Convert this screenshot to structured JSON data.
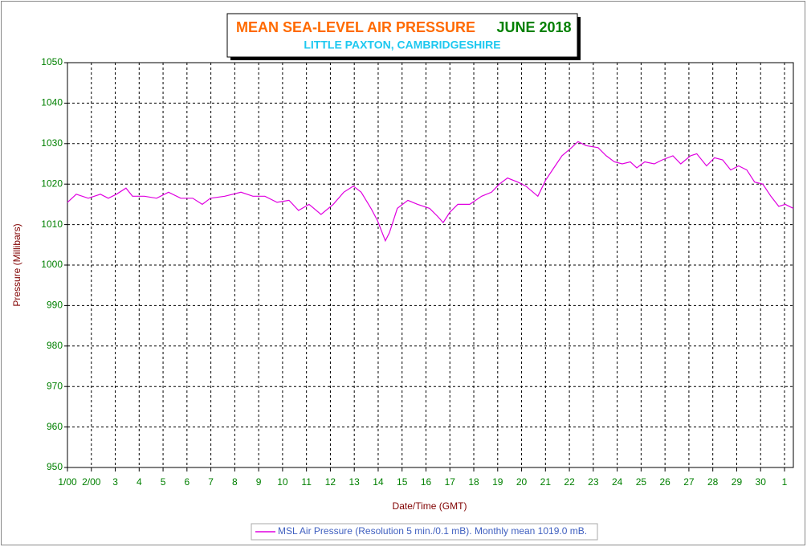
{
  "chart_data": {
    "type": "line",
    "title": "MEAN SEA-LEVEL AIR PRESSURE",
    "period": "JUNE 2018",
    "subtitle": "LITTLE PAXTON, CAMBRIDGESHIRE",
    "x_label": "Date/Time (GMT)",
    "y_label": "Pressure (Millibars)",
    "x": [
      0,
      0.37,
      0.87,
      1.38,
      1.71,
      2.05,
      2.45,
      2.72,
      3.22,
      3.73,
      4.23,
      4.74,
      5.24,
      5.64,
      5.98,
      6.58,
      7.26,
      7.76,
      8.26,
      8.77,
      9.27,
      9.67,
      10.11,
      10.61,
      11.12,
      11.56,
      11.96,
      12.29,
      12.7,
      12.97,
      13.3,
      13.47,
      13.8,
      14.24,
      14.65,
      15.15,
      15.49,
      15.72,
      15.99,
      16.33,
      16.83,
      17.33,
      17.74,
      18.07,
      18.41,
      18.84,
      19.18,
      19.68,
      20.01,
      20.35,
      20.69,
      21.09,
      21.36,
      21.7,
      22.2,
      22.54,
      22.88,
      23.21,
      23.55,
      23.82,
      24.15,
      24.55,
      24.89,
      25.33,
      25.66,
      26.07,
      26.33,
      26.74,
      27.07,
      27.41,
      27.75,
      28.08,
      28.42,
      28.75,
      29.09,
      29.43,
      29.76,
      30.03,
      30.37
    ],
    "series": [
      {
        "name": "MSL Air Pressure (Resolution 5 min./0.1 mB). Monthly mean 1019.0 mB.",
        "color": "#e000e0",
        "values": [
          1015.5,
          1017.5,
          1016.5,
          1017.5,
          1016.5,
          1017.5,
          1019,
          1017,
          1017,
          1016.5,
          1018,
          1016.5,
          1016.5,
          1015,
          1016.5,
          1017,
          1018,
          1017,
          1017,
          1015.5,
          1016,
          1013.5,
          1015,
          1012.5,
          1015,
          1018,
          1019.5,
          1018,
          1014,
          1011,
          1006,
          1008,
          1014,
          1016,
          1015,
          1014,
          1012,
          1010.5,
          1013,
          1015,
          1015,
          1017,
          1018,
          1020,
          1021.5,
          1020.5,
          1019.5,
          1017,
          1021,
          1024,
          1027,
          1029,
          1030.5,
          1029.5,
          1029,
          1027,
          1025.5,
          1025,
          1025.5,
          1024,
          1025.5,
          1025,
          1026,
          1027,
          1025,
          1027,
          1027.5,
          1024.5,
          1026.5,
          1026,
          1023.5,
          1024.5,
          1023.5,
          1020.5,
          1020,
          1017,
          1014.5,
          1015,
          1014
        ]
      }
    ],
    "xlim": [
      0,
      30.37
    ],
    "xticks": [
      {
        "value": 0,
        "label": "1/00"
      },
      {
        "value": 1,
        "label": "2/00"
      },
      {
        "value": 2,
        "label": "3"
      },
      {
        "value": 3,
        "label": "4"
      },
      {
        "value": 4,
        "label": "5"
      },
      {
        "value": 5,
        "label": "6"
      },
      {
        "value": 6,
        "label": "7"
      },
      {
        "value": 7,
        "label": "8"
      },
      {
        "value": 8,
        "label": "9"
      },
      {
        "value": 9,
        "label": "10"
      },
      {
        "value": 10,
        "label": "11"
      },
      {
        "value": 11,
        "label": "12"
      },
      {
        "value": 12,
        "label": "13"
      },
      {
        "value": 13,
        "label": "14"
      },
      {
        "value": 14,
        "label": "15"
      },
      {
        "value": 15,
        "label": "16"
      },
      {
        "value": 16,
        "label": "17"
      },
      {
        "value": 17,
        "label": "18"
      },
      {
        "value": 18,
        "label": "19"
      },
      {
        "value": 19,
        "label": "20"
      },
      {
        "value": 20,
        "label": "21"
      },
      {
        "value": 21,
        "label": "22"
      },
      {
        "value": 22,
        "label": "23"
      },
      {
        "value": 23,
        "label": "24"
      },
      {
        "value": 24,
        "label": "25"
      },
      {
        "value": 25,
        "label": "26"
      },
      {
        "value": 26,
        "label": "27"
      },
      {
        "value": 27,
        "label": "28"
      },
      {
        "value": 28,
        "label": "29"
      },
      {
        "value": 29,
        "label": "30"
      },
      {
        "value": 30,
        "label": "1"
      }
    ],
    "ylim": [
      950,
      1050
    ],
    "yticks": [
      950,
      960,
      970,
      980,
      990,
      1000,
      1010,
      1020,
      1030,
      1040,
      1050
    ],
    "grid": true
  }
}
